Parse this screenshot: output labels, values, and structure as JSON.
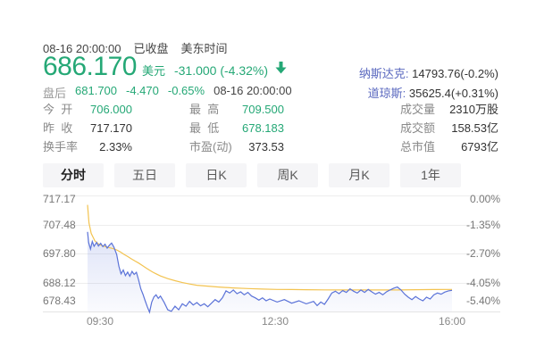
{
  "header": {
    "datetime": "08-16 20:00:00",
    "market_status": "已收盘",
    "timezone": "美东时间",
    "price": "686.170",
    "currency": "美元",
    "change": "-31.000 (-4.32%)",
    "after_hours": {
      "label": "盘后",
      "price": "681.700",
      "change": "-4.470",
      "change_pct": "-0.65%",
      "time": "08-16 20:00:00"
    },
    "indices": [
      {
        "label": "纳斯达克",
        "value": "14793.76(-0.2%)"
      },
      {
        "label": "道琼斯",
        "value": "35625.4(+0.31%)"
      }
    ]
  },
  "stats": {
    "columns": [
      {
        "rows": [
          {
            "label": "今  开",
            "value": "706.000"
          },
          {
            "label": "昨  收",
            "value": "717.170"
          },
          {
            "label": "换手率",
            "value": "2.33%"
          }
        ]
      },
      {
        "rows": [
          {
            "label": "最  高",
            "value": "709.500"
          },
          {
            "label": "最  低",
            "value": "678.183"
          },
          {
            "label": "市盈(动)",
            "value": "373.53"
          }
        ]
      },
      {
        "rows": [
          {
            "label": "成交量",
            "value": "2310万股"
          },
          {
            "label": "成交额",
            "value": "158.53亿"
          },
          {
            "label": "总市值",
            "value": "6793亿"
          }
        ]
      }
    ]
  },
  "tabs": [
    {
      "label": "分时",
      "active": true
    },
    {
      "label": "五日",
      "active": false
    },
    {
      "label": "日K",
      "active": false
    },
    {
      "label": "周K",
      "active": false
    },
    {
      "label": "月K",
      "active": false
    },
    {
      "label": "1年",
      "active": false
    }
  ],
  "colors": {
    "down_green": "#25a876",
    "index_link_blue": "#5a68bf",
    "price_line_blue": "#5b73d8",
    "avg_line_yellow": "#f3c350",
    "grid": "#ededed"
  },
  "chart_data": {
    "type": "line",
    "title": "分时 (intraday minute chart)",
    "prev_close": 717.17,
    "ylim": [
      678.43,
      717.17
    ],
    "y_axis_left": [
      "717.17",
      "707.48",
      "697.80",
      "688.12",
      "678.43"
    ],
    "y_axis_right": [
      "0.00%",
      "-1.35%",
      "-2.70%",
      "-4.05%",
      "-5.40%"
    ],
    "x_ticks": [
      "09:30",
      "12:30",
      "16:00"
    ],
    "legend_position": "none",
    "grid": true,
    "series": [
      {
        "name": "价格",
        "color": "#5b73d8",
        "points": [
          [
            0,
            705
          ],
          [
            0.003,
            701.5
          ],
          [
            0.008,
            699.3
          ],
          [
            0.013,
            701.8
          ],
          [
            0.018,
            700.2
          ],
          [
            0.025,
            701.5
          ],
          [
            0.03,
            700.3
          ],
          [
            0.036,
            701.2
          ],
          [
            0.042,
            700.1
          ],
          [
            0.048,
            700.9
          ],
          [
            0.054,
            699.6
          ],
          [
            0.06,
            700.6
          ],
          [
            0.066,
            701.3
          ],
          [
            0.072,
            700.0
          ],
          [
            0.08,
            697.5
          ],
          [
            0.086,
            693.5
          ],
          [
            0.092,
            691.0
          ],
          [
            0.098,
            692.3
          ],
          [
            0.104,
            690.4
          ],
          [
            0.11,
            691.6
          ],
          [
            0.116,
            690.2
          ],
          [
            0.122,
            691.8
          ],
          [
            0.128,
            690.8
          ],
          [
            0.134,
            691.5
          ],
          [
            0.14,
            689.0
          ],
          [
            0.146,
            686.0
          ],
          [
            0.152,
            684.2
          ],
          [
            0.158,
            682.0
          ],
          [
            0.164,
            680.0
          ],
          [
            0.17,
            678.2
          ],
          [
            0.176,
            681.5
          ],
          [
            0.182,
            683.3
          ],
          [
            0.188,
            684.0
          ],
          [
            0.194,
            682.8
          ],
          [
            0.2,
            683.6
          ],
          [
            0.21,
            681.5
          ],
          [
            0.22,
            679.0
          ],
          [
            0.23,
            678.5
          ],
          [
            0.24,
            680.2
          ],
          [
            0.25,
            679.0
          ],
          [
            0.26,
            681.0
          ],
          [
            0.27,
            680.2
          ],
          [
            0.28,
            681.8
          ],
          [
            0.29,
            680.6
          ],
          [
            0.3,
            681.4
          ],
          [
            0.31,
            680.3
          ],
          [
            0.32,
            681.0
          ],
          [
            0.33,
            680.0
          ],
          [
            0.34,
            681.2
          ],
          [
            0.35,
            682.4
          ],
          [
            0.36,
            681.6
          ],
          [
            0.37,
            683.0
          ],
          [
            0.38,
            685.3
          ],
          [
            0.39,
            684.6
          ],
          [
            0.4,
            685.6
          ],
          [
            0.41,
            684.4
          ],
          [
            0.42,
            685.0
          ],
          [
            0.43,
            684.0
          ],
          [
            0.44,
            684.8
          ],
          [
            0.45,
            683.6
          ],
          [
            0.46,
            683.0
          ],
          [
            0.47,
            682.2
          ],
          [
            0.48,
            683.0
          ],
          [
            0.49,
            682.0
          ],
          [
            0.5,
            682.6
          ],
          [
            0.52,
            681.6
          ],
          [
            0.54,
            682.4
          ],
          [
            0.56,
            681.2
          ],
          [
            0.58,
            682.0
          ],
          [
            0.6,
            681.0
          ],
          [
            0.62,
            681.8
          ],
          [
            0.63,
            680.4
          ],
          [
            0.64,
            681.6
          ],
          [
            0.65,
            680.8
          ],
          [
            0.66,
            682.6
          ],
          [
            0.67,
            684.6
          ],
          [
            0.68,
            685.2
          ],
          [
            0.69,
            684.4
          ],
          [
            0.7,
            685.4
          ],
          [
            0.71,
            684.8
          ],
          [
            0.72,
            686.0
          ],
          [
            0.73,
            685.2
          ],
          [
            0.74,
            684.6
          ],
          [
            0.75,
            685.6
          ],
          [
            0.76,
            684.8
          ],
          [
            0.77,
            685.8
          ],
          [
            0.78,
            685.0
          ],
          [
            0.79,
            684.2
          ],
          [
            0.8,
            684.8
          ],
          [
            0.81,
            684.0
          ],
          [
            0.82,
            685.0
          ],
          [
            0.83,
            685.6
          ],
          [
            0.84,
            686.2
          ],
          [
            0.85,
            686.6
          ],
          [
            0.86,
            685.6
          ],
          [
            0.87,
            684.2
          ],
          [
            0.88,
            683.2
          ],
          [
            0.89,
            682.4
          ],
          [
            0.9,
            683.4
          ],
          [
            0.91,
            682.6
          ],
          [
            0.92,
            682.0
          ],
          [
            0.93,
            683.2
          ],
          [
            0.94,
            682.6
          ],
          [
            0.95,
            684.0
          ],
          [
            0.96,
            684.6
          ],
          [
            0.97,
            684.2
          ],
          [
            0.98,
            684.9
          ],
          [
            0.99,
            685.3
          ],
          [
            1,
            685.5
          ]
        ]
      },
      {
        "name": "均价",
        "color": "#f3c350",
        "points": [
          [
            0,
            714
          ],
          [
            0.004,
            708
          ],
          [
            0.01,
            704.5
          ],
          [
            0.02,
            702.0
          ],
          [
            0.03,
            701.0
          ],
          [
            0.04,
            700.4
          ],
          [
            0.05,
            700.0
          ],
          [
            0.06,
            699.7
          ],
          [
            0.07,
            699.4
          ],
          [
            0.08,
            699.0
          ],
          [
            0.09,
            698.3
          ],
          [
            0.1,
            697.5
          ],
          [
            0.11,
            696.8
          ],
          [
            0.12,
            696.0
          ],
          [
            0.13,
            695.3
          ],
          [
            0.14,
            694.6
          ],
          [
            0.15,
            693.8
          ],
          [
            0.16,
            693.0
          ],
          [
            0.17,
            692.2
          ],
          [
            0.18,
            691.5
          ],
          [
            0.19,
            690.9
          ],
          [
            0.2,
            690.3
          ],
          [
            0.22,
            689.4
          ],
          [
            0.24,
            688.7
          ],
          [
            0.26,
            688.1
          ],
          [
            0.28,
            687.6
          ],
          [
            0.3,
            687.2
          ],
          [
            0.33,
            686.9
          ],
          [
            0.36,
            686.6
          ],
          [
            0.4,
            686.3
          ],
          [
            0.44,
            686.1
          ],
          [
            0.48,
            685.9
          ],
          [
            0.52,
            685.8
          ],
          [
            0.56,
            685.75
          ],
          [
            0.6,
            685.7
          ],
          [
            0.65,
            685.65
          ],
          [
            0.7,
            685.6
          ],
          [
            0.75,
            685.6
          ],
          [
            0.8,
            685.6
          ],
          [
            0.85,
            685.6
          ],
          [
            0.9,
            685.7
          ],
          [
            0.95,
            685.75
          ],
          [
            1,
            685.8
          ]
        ]
      }
    ]
  }
}
